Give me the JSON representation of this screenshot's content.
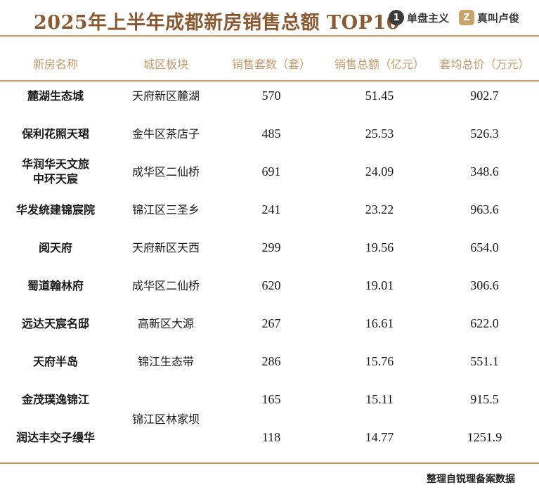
{
  "title": "2025年上半年成都新房销售总额 TOP10",
  "logos": [
    {
      "mark": "1",
      "text": "单盘主义",
      "icon": "single-disc-logo-icon"
    },
    {
      "mark": "Z",
      "text": "真叫卢俊",
      "icon": "zhenjiao-logo-icon"
    }
  ],
  "table": {
    "headers": [
      "新房名称",
      "城区板块",
      "销售套数（套）",
      "销售总额（亿元）",
      "套均总价（万元）"
    ],
    "rows": [
      {
        "name": "麓湖生态城",
        "area": "天府新区麓湖",
        "units": "570",
        "total": "51.45",
        "avg": "902.7"
      },
      {
        "name": "保利花照天珺",
        "area": "金牛区茶店子",
        "units": "485",
        "total": "25.53",
        "avg": "526.3"
      },
      {
        "name": "华润华天文旅中环天宸",
        "name_line1": "华润华天文旅",
        "name_line2": "中环天宸",
        "area": "成华区二仙桥",
        "units": "691",
        "total": "24.09",
        "avg": "348.6"
      },
      {
        "name": "华发统建锦宸院",
        "area": "锦江区三圣乡",
        "units": "241",
        "total": "23.22",
        "avg": "963.6"
      },
      {
        "name": "阅天府",
        "area": "天府新区天西",
        "units": "299",
        "total": "19.56",
        "avg": "654.0"
      },
      {
        "name": "蜀道翰林府",
        "area": "成华区二仙桥",
        "units": "620",
        "total": "19.01",
        "avg": "306.6"
      },
      {
        "name": "远达天宸名邸",
        "area": "高新区大源",
        "units": "267",
        "total": "16.61",
        "avg": "622.0"
      },
      {
        "name": "天府半岛",
        "area": "锦江生态带",
        "units": "286",
        "total": "15.76",
        "avg": "551.1"
      },
      {
        "name": "金茂璞逸锦江",
        "area": "锦江区林家坝",
        "units": "165",
        "total": "15.11",
        "avg": "915.5"
      },
      {
        "name": "润达丰交子缦华",
        "area": "锦江区林家坝",
        "units": "118",
        "total": "14.77",
        "avg": "1251.9"
      }
    ]
  },
  "footer": "整理自锐理备案数据",
  "colors": {
    "accent": "#c49a6c",
    "title": "#8a5a34"
  }
}
